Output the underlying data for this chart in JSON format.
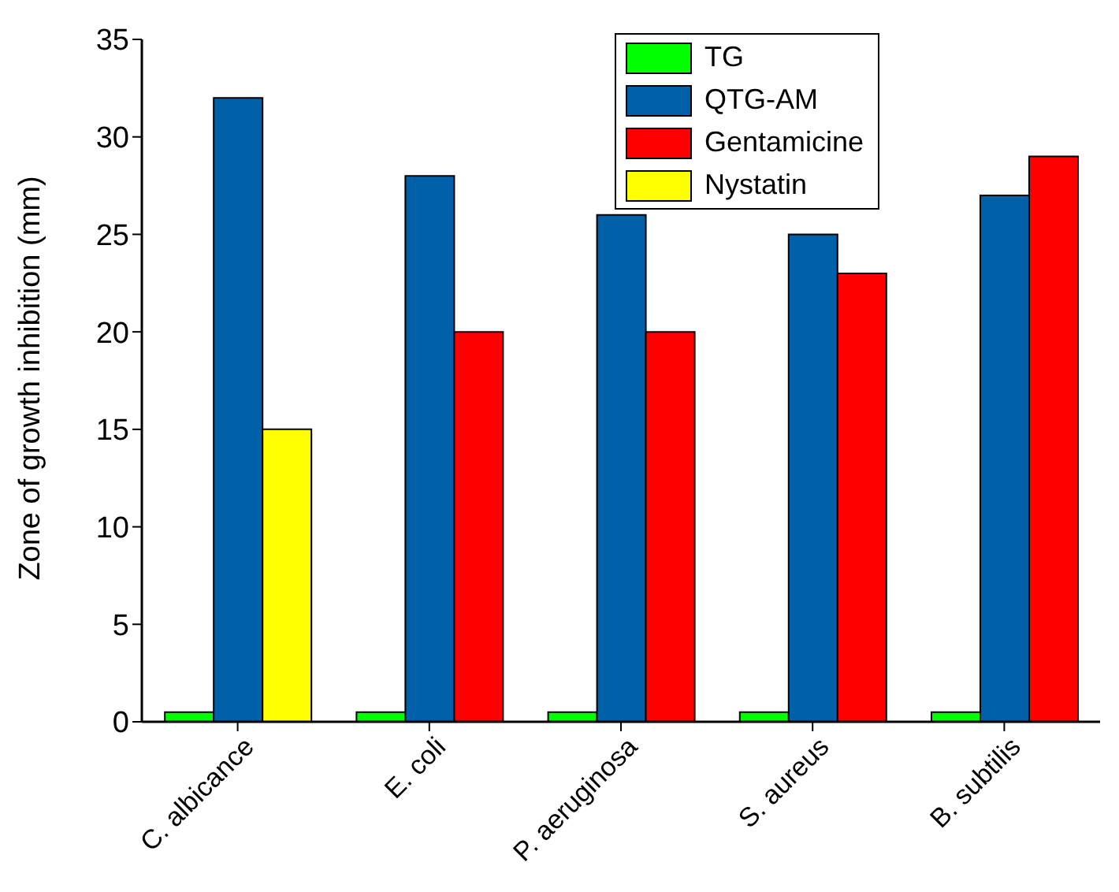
{
  "chart_data": {
    "type": "bar",
    "ylabel": "Zone of growth inhibition (mm)",
    "categories": [
      "C. albicance",
      "E. coli",
      "P. aeruginosa",
      "S. aureus",
      "B. subtilis"
    ],
    "series": [
      {
        "name": "TG",
        "color": "#00ff00",
        "values": [
          0.5,
          0.5,
          0.5,
          0.5,
          0.5
        ]
      },
      {
        "name": "QTG-AM",
        "color": "#0061a8",
        "values": [
          32,
          28,
          26,
          25,
          27
        ]
      },
      {
        "name": "Gentamicine",
        "color": "#ff0000",
        "values": [
          null,
          20,
          20,
          23,
          29
        ]
      },
      {
        "name": "Nystatin",
        "color": "#ffff00",
        "values": [
          15,
          null,
          null,
          null,
          null
        ]
      }
    ],
    "ylim": [
      0,
      35
    ],
    "yticks": [
      0,
      5,
      10,
      15,
      20,
      25,
      30,
      35
    ],
    "grid": false,
    "legend": "top"
  }
}
